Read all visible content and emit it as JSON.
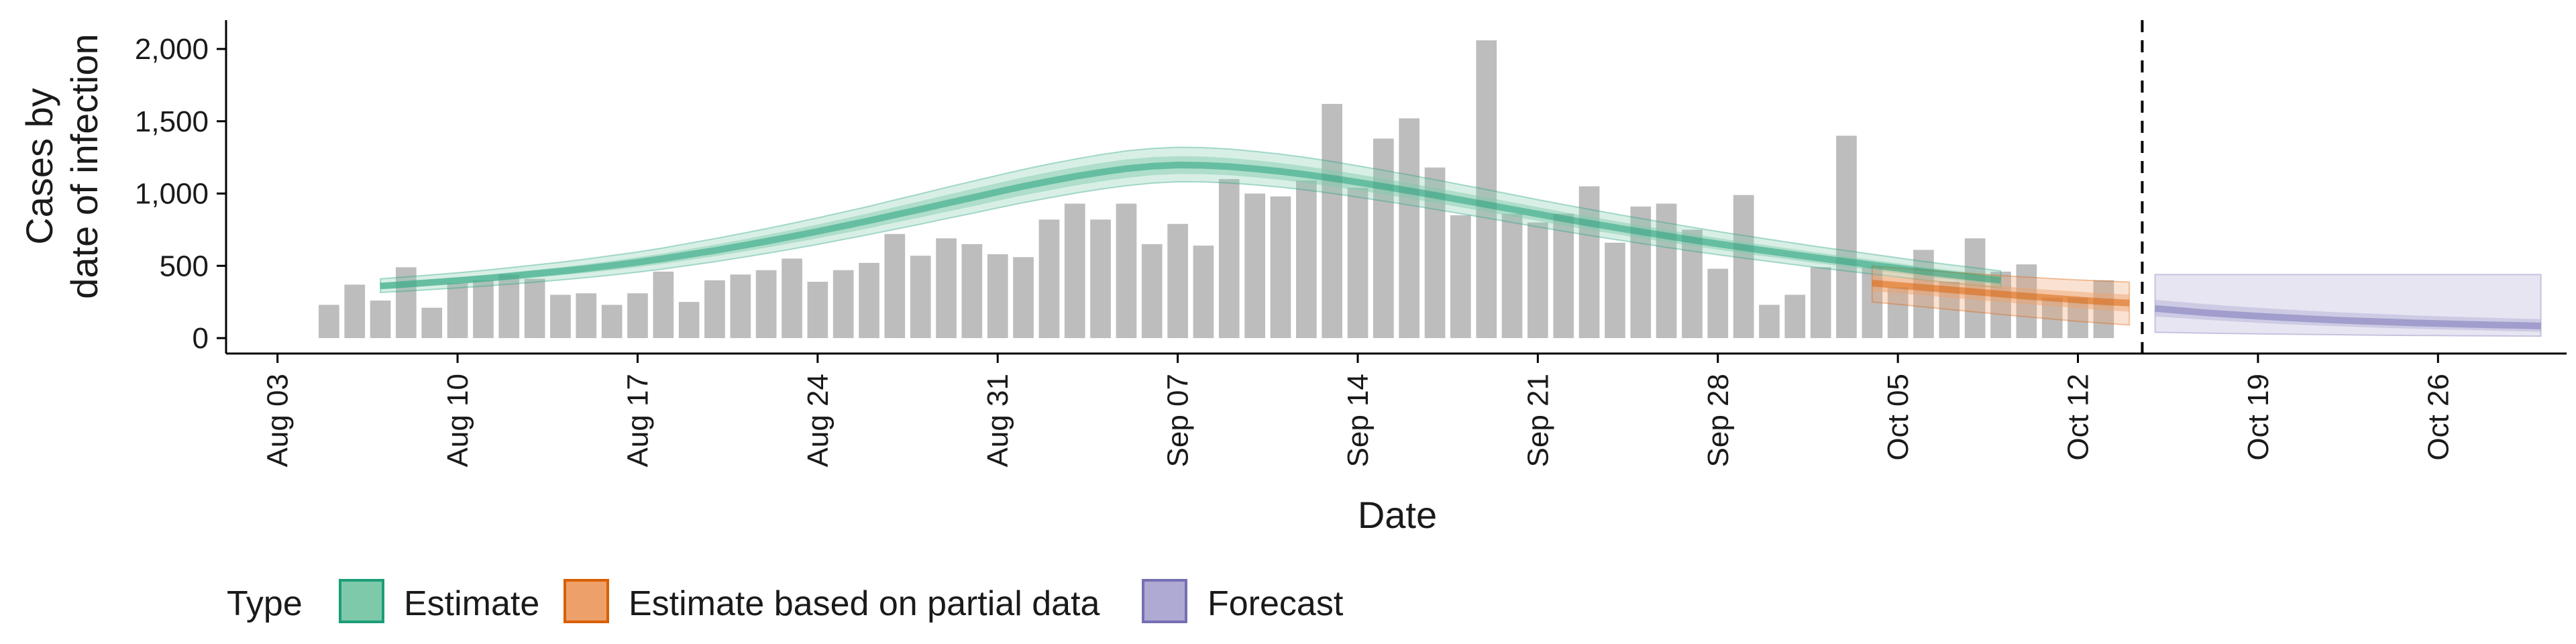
{
  "chart_data": {
    "type": "bar",
    "xlabel": "Date",
    "ylabel": [
      "Cases by",
      "date of infection"
    ],
    "ylim": [
      0,
      2100
    ],
    "xlim": [
      "2020-08-01",
      "2020-10-31"
    ],
    "grid": false,
    "legend": {
      "title": "Type",
      "position": "bottom",
      "items": [
        {
          "label": "Estimate",
          "fill": "#7fc9ab",
          "stroke": "#1b9e77"
        },
        {
          "label": "Estimate based on partial data",
          "fill": "#eea06a",
          "stroke": "#d95f02"
        },
        {
          "label": "Forecast",
          "fill": "#aeaad3",
          "stroke": "#7570b3"
        }
      ]
    },
    "y_ticks": [
      {
        "value": 0,
        "label": "0"
      },
      {
        "value": 500,
        "label": "500"
      },
      {
        "value": 1000,
        "label": "1,000"
      },
      {
        "value": 1500,
        "label": "1,500"
      },
      {
        "value": 2000,
        "label": "2,000"
      }
    ],
    "x_ticks": [
      {
        "date": "2020-08-03",
        "label": "Aug 03"
      },
      {
        "date": "2020-08-10",
        "label": "Aug 10"
      },
      {
        "date": "2020-08-17",
        "label": "Aug 17"
      },
      {
        "date": "2020-08-24",
        "label": "Aug 24"
      },
      {
        "date": "2020-08-31",
        "label": "Aug 31"
      },
      {
        "date": "2020-09-07",
        "label": "Sep 07"
      },
      {
        "date": "2020-09-14",
        "label": "Sep 14"
      },
      {
        "date": "2020-09-21",
        "label": "Sep 21"
      },
      {
        "date": "2020-09-28",
        "label": "Sep 28"
      },
      {
        "date": "2020-10-05",
        "label": "Oct 05"
      },
      {
        "date": "2020-10-12",
        "label": "Oct 12"
      },
      {
        "date": "2020-10-19",
        "label": "Oct 19"
      },
      {
        "date": "2020-10-26",
        "label": "Oct 26"
      }
    ],
    "bar_color": "#bdbdbd",
    "reported_cases": {
      "start_date": "2020-08-05",
      "values": [
        230,
        370,
        260,
        490,
        210,
        380,
        400,
        440,
        410,
        300,
        310,
        230,
        310,
        460,
        250,
        400,
        440,
        470,
        550,
        390,
        470,
        520,
        720,
        570,
        690,
        650,
        580,
        560,
        820,
        930,
        820,
        930,
        650,
        790,
        640,
        1100,
        1000,
        980,
        1090,
        1620,
        1040,
        1380,
        1520,
        1180,
        850,
        2060,
        860,
        800,
        860,
        1050,
        660,
        910,
        930,
        750,
        480,
        990,
        230,
        300,
        490,
        1400,
        490,
        350,
        610,
        390,
        690,
        460,
        510,
        280,
        280,
        400
      ]
    },
    "forecast_start": "2020-10-15",
    "series": [
      {
        "name": "Estimate",
        "start_date": "2020-08-07",
        "median": [
          360,
          372,
          385,
          398,
          412,
          428,
          445,
          462,
          481,
          502,
          525,
          550,
          578,
          606,
          637,
          669,
          703,
          738,
          775,
          812,
          852,
          891,
          932,
          971,
          1011,
          1050,
          1085,
          1118,
          1147,
          1172,
          1189,
          1197,
          1195,
          1186,
          1171,
          1153,
          1131,
          1106,
          1078,
          1049,
          1019,
          988,
          956,
          924,
          891,
          858,
          826,
          795,
          765,
          736,
          707,
          679,
          652,
          626,
          601,
          576,
          552,
          529,
          506,
          484,
          460,
          440,
          420,
          400
        ],
        "inner": [
          [
            340,
            380
          ],
          [
            351,
            393
          ],
          [
            363,
            407
          ],
          [
            375,
            421
          ],
          [
            388,
            436
          ],
          [
            402,
            454
          ],
          [
            418,
            472
          ],
          [
            434,
            490
          ],
          [
            451,
            511
          ],
          [
            470,
            534
          ],
          [
            491,
            559
          ],
          [
            514,
            586
          ],
          [
            540,
            616
          ],
          [
            566,
            646
          ],
          [
            595,
            679
          ],
          [
            625,
            713
          ],
          [
            657,
            749
          ],
          [
            690,
            786
          ],
          [
            725,
            825
          ],
          [
            760,
            864
          ],
          [
            798,
            906
          ],
          [
            835,
            947
          ],
          [
            874,
            990
          ],
          [
            911,
            1031
          ],
          [
            950,
            1072
          ],
          [
            988,
            1112
          ],
          [
            1022,
            1148
          ],
          [
            1055,
            1181
          ],
          [
            1083,
            1211
          ],
          [
            1108,
            1236
          ],
          [
            1126,
            1252
          ],
          [
            1135,
            1259
          ],
          [
            1134,
            1256
          ],
          [
            1126,
            1246
          ],
          [
            1112,
            1230
          ],
          [
            1095,
            1211
          ],
          [
            1074,
            1188
          ],
          [
            1050,
            1162
          ],
          [
            1023,
            1133
          ],
          [
            995,
            1103
          ],
          [
            966,
            1072
          ],
          [
            936,
            1040
          ],
          [
            905,
            1007
          ],
          [
            874,
            974
          ],
          [
            842,
            940
          ],
          [
            810,
            906
          ],
          [
            779,
            873
          ],
          [
            749,
            841
          ],
          [
            720,
            810
          ],
          [
            692,
            780
          ],
          [
            664,
            750
          ],
          [
            637,
            721
          ],
          [
            611,
            693
          ],
          [
            586,
            666
          ],
          [
            562,
            640
          ],
          [
            538,
            614
          ],
          [
            515,
            589
          ],
          [
            493,
            565
          ],
          [
            471,
            541
          ],
          [
            450,
            518
          ],
          [
            427,
            493
          ],
          [
            408,
            472
          ],
          [
            389,
            451
          ],
          [
            369,
            431
          ]
        ],
        "outer": [
          [
            315,
            410
          ],
          [
            325,
            423
          ],
          [
            336,
            438
          ],
          [
            347,
            452
          ],
          [
            359,
            468
          ],
          [
            372,
            487
          ],
          [
            387,
            506
          ],
          [
            402,
            525
          ],
          [
            418,
            547
          ],
          [
            436,
            571
          ],
          [
            456,
            596
          ],
          [
            478,
            624
          ],
          [
            503,
            656
          ],
          [
            528,
            688
          ],
          [
            556,
            722
          ],
          [
            585,
            757
          ],
          [
            616,
            794
          ],
          [
            648,
            832
          ],
          [
            682,
            872
          ],
          [
            716,
            912
          ],
          [
            752,
            956
          ],
          [
            788,
            998
          ],
          [
            826,
            1042
          ],
          [
            862,
            1084
          ],
          [
            900,
            1126
          ],
          [
            937,
            1167
          ],
          [
            970,
            1204
          ],
          [
            1002,
            1238
          ],
          [
            1030,
            1269
          ],
          [
            1054,
            1295
          ],
          [
            1072,
            1312
          ],
          [
            1081,
            1320
          ],
          [
            1080,
            1318
          ],
          [
            1073,
            1308
          ],
          [
            1060,
            1292
          ],
          [
            1044,
            1273
          ],
          [
            1024,
            1249
          ],
          [
            1001,
            1222
          ],
          [
            975,
            1192
          ],
          [
            948,
            1161
          ],
          [
            920,
            1129
          ],
          [
            891,
            1096
          ],
          [
            861,
            1062
          ],
          [
            831,
            1028
          ],
          [
            800,
            993
          ],
          [
            769,
            958
          ],
          [
            739,
            924
          ],
          [
            710,
            891
          ],
          [
            682,
            859
          ],
          [
            655,
            828
          ],
          [
            628,
            797
          ],
          [
            602,
            767
          ],
          [
            577,
            738
          ],
          [
            553,
            710
          ],
          [
            530,
            683
          ],
          [
            507,
            656
          ],
          [
            485,
            630
          ],
          [
            464,
            605
          ],
          [
            443,
            580
          ],
          [
            423,
            556
          ],
          [
            401,
            530
          ],
          [
            383,
            508
          ],
          [
            365,
            486
          ],
          [
            346,
            465
          ]
        ]
      },
      {
        "name": "Estimate based on partial data",
        "start_date": "2020-10-04",
        "median": [
          380,
          365,
          350,
          335,
          320,
          305,
          290,
          277,
          264,
          252,
          242
        ],
        "inner": [
          [
            325,
            435
          ],
          [
            310,
            420
          ],
          [
            295,
            405
          ],
          [
            280,
            390
          ],
          [
            265,
            375
          ],
          [
            250,
            360
          ],
          [
            235,
            345
          ],
          [
            221,
            333
          ],
          [
            207,
            321
          ],
          [
            194,
            310
          ],
          [
            183,
            301
          ]
        ],
        "outer": [
          [
            250,
            500
          ],
          [
            233,
            485
          ],
          [
            216,
            470
          ],
          [
            198,
            457
          ],
          [
            181,
            445
          ],
          [
            164,
            433
          ],
          [
            147,
            422
          ],
          [
            132,
            412
          ],
          [
            116,
            403
          ],
          [
            103,
            395
          ],
          [
            90,
            388
          ]
        ]
      },
      {
        "name": "Forecast",
        "start_date": "2020-10-15",
        "median": [
          205,
          190,
          175,
          163,
          152,
          142,
          133,
          125,
          118,
          112,
          106,
          101,
          96,
          92,
          88,
          84
        ],
        "inner": [
          [
            150,
            265
          ],
          [
            138,
            250
          ],
          [
            126,
            235
          ],
          [
            116,
            222
          ],
          [
            106,
            210
          ],
          [
            97,
            199
          ],
          [
            89,
            189
          ],
          [
            82,
            180
          ],
          [
            76,
            172
          ],
          [
            70,
            165
          ],
          [
            65,
            158
          ],
          [
            60,
            152
          ],
          [
            56,
            146
          ],
          [
            52,
            141
          ],
          [
            48,
            136
          ],
          [
            44,
            132
          ]
        ],
        "outer": [
          [
            40,
            440
          ],
          [
            37,
            440
          ],
          [
            34,
            440
          ],
          [
            31,
            440
          ],
          [
            29,
            440
          ],
          [
            27,
            440
          ],
          [
            25,
            440
          ],
          [
            23,
            440
          ],
          [
            21,
            440
          ],
          [
            19,
            440
          ],
          [
            18,
            440
          ],
          [
            17,
            440
          ],
          [
            16,
            440
          ],
          [
            15,
            440
          ],
          [
            14,
            440
          ],
          [
            13,
            440
          ]
        ]
      }
    ]
  }
}
